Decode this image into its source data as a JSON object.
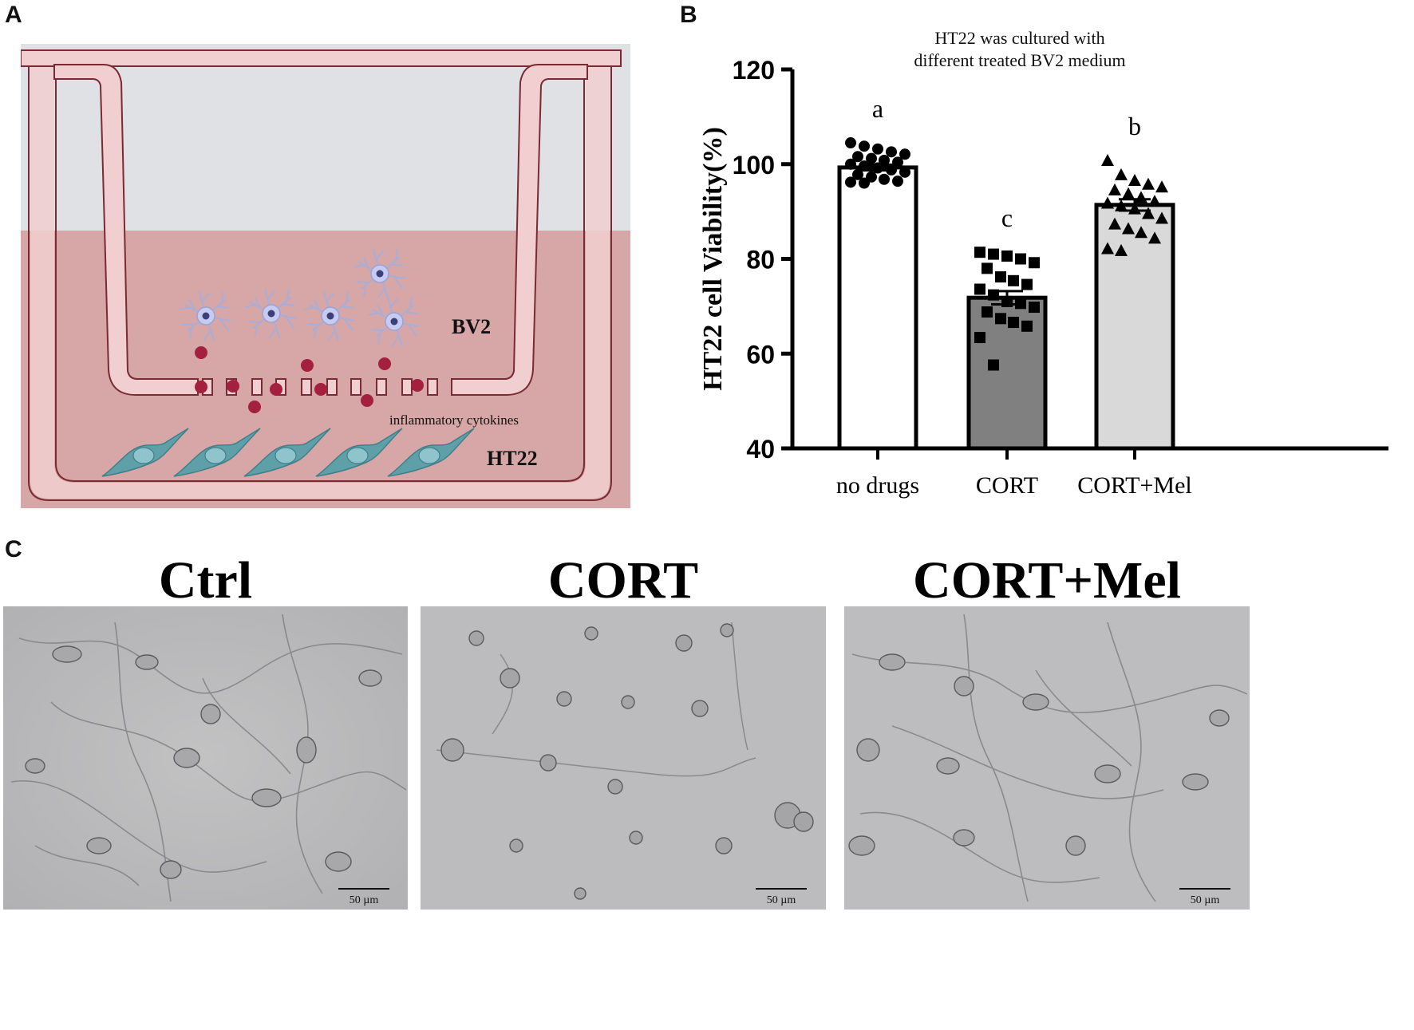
{
  "panels": {
    "a": "A",
    "b": "B",
    "c": "C"
  },
  "panel_a": {
    "bv2_label": "BV2",
    "cytokine_label": "inflammatory cytokines",
    "ht22_label": "HT22"
  },
  "chart_data": {
    "type": "bar",
    "title": "HT22 was cultured with different treated BV2 medium",
    "title_lines": [
      "HT22 was cultured with",
      "different treated BV2 medium"
    ],
    "ylabel": "HT22 cell Viability(%)",
    "xlabel": "",
    "ylim": [
      40,
      120
    ],
    "yticks": [
      40,
      60,
      80,
      100,
      120
    ],
    "categories": [
      "no drugs",
      "CORT",
      "CORT+Mel"
    ],
    "values": [
      99.3,
      71.8,
      91.4
    ],
    "sem": [
      0.6,
      1.4,
      1.2
    ],
    "significance": [
      "a",
      "c",
      "b"
    ],
    "bar_colors": [
      "#ffffff",
      "#808080",
      "#d9d9d9"
    ],
    "marker_shapes": [
      "circle",
      "square",
      "triangle"
    ],
    "points": [
      [
        104.5,
        103.8,
        103.2,
        102.6,
        102.1,
        101.6,
        101.2,
        100.8,
        100.4,
        100.0,
        99.6,
        99.2,
        98.8,
        98.3,
        97.8,
        97.3,
        96.8,
        96.4,
        96.2,
        96.0
      ],
      [
        81.4,
        81.0,
        80.6,
        80.0,
        79.2,
        78.0,
        76.2,
        75.4,
        74.6,
        73.6,
        72.4,
        71.0,
        70.6,
        69.8,
        68.8,
        67.4,
        66.6,
        65.8,
        63.4,
        57.6
      ],
      [
        100.8,
        97.8,
        96.6,
        95.8,
        95.2,
        94.6,
        93.8,
        93.0,
        92.2,
        91.8,
        91.2,
        90.6,
        89.6,
        88.6,
        87.4,
        86.4,
        85.6,
        84.4,
        82.2,
        81.8
      ]
    ]
  },
  "panel_c": {
    "images": [
      {
        "title": "Ctrl",
        "scale": "50 µm"
      },
      {
        "title": "CORT",
        "scale": "50 µm"
      },
      {
        "title": "CORT+Mel",
        "scale": "50 µm"
      }
    ]
  }
}
